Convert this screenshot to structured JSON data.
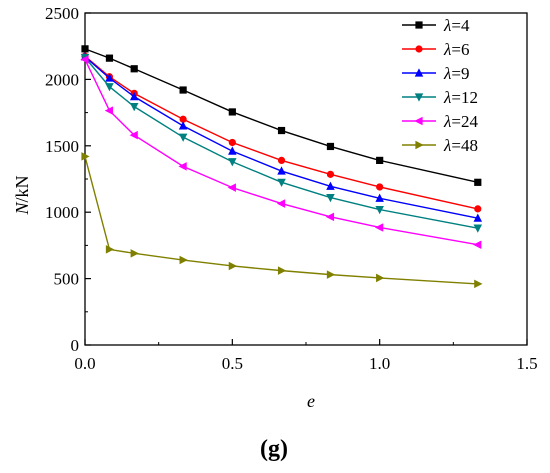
{
  "chart_data": {
    "type": "line",
    "caption": "(g)",
    "xlabel": "e",
    "ylabel_main": "N",
    "ylabel_unit": "/kN",
    "xlim": [
      0,
      1.5
    ],
    "ylim": [
      0,
      2500
    ],
    "x_ticks": [
      "0.0",
      "0.5",
      "1.0",
      "1.5"
    ],
    "y_ticks": [
      "0",
      "500",
      "1000",
      "1500",
      "2000",
      "2500"
    ],
    "grid": false,
    "legend_position": "top-right",
    "x": [
      0,
      0.083,
      0.167,
      0.333,
      0.5,
      0.667,
      0.833,
      1.0,
      1.333
    ],
    "series": [
      {
        "name": "λ=4",
        "legend_symbol": "λ",
        "legend_value": "=4",
        "color": "#000000",
        "marker": "square",
        "values": [
          2230,
          2160,
          2080,
          1920,
          1755,
          1615,
          1495,
          1390,
          1225
        ]
      },
      {
        "name": "λ=6",
        "legend_symbol": "λ",
        "legend_value": "=6",
        "color": "#ff0000",
        "marker": "circle",
        "values": [
          2175,
          2020,
          1895,
          1700,
          1525,
          1390,
          1285,
          1190,
          1025
        ]
      },
      {
        "name": "λ=9",
        "legend_symbol": "λ",
        "legend_value": "=9",
        "color": "#0000ff",
        "marker": "triangle-up",
        "values": [
          2170,
          2010,
          1870,
          1650,
          1460,
          1310,
          1195,
          1105,
          955
        ]
      },
      {
        "name": "λ=12",
        "legend_symbol": "λ",
        "legend_value": "=12",
        "color": "#008080",
        "marker": "triangle-down",
        "values": [
          2165,
          1945,
          1795,
          1565,
          1380,
          1225,
          1110,
          1020,
          880
        ]
      },
      {
        "name": "λ=24",
        "legend_symbol": "λ",
        "legend_value": "=24",
        "color": "#ff00ff",
        "marker": "triangle-left",
        "values": [
          2150,
          1765,
          1580,
          1345,
          1185,
          1065,
          965,
          885,
          755
        ]
      },
      {
        "name": "λ=48",
        "legend_symbol": "λ",
        "legend_value": "=48",
        "color": "#808000",
        "marker": "triangle-right",
        "values": [
          1420,
          720,
          690,
          640,
          595,
          560,
          530,
          505,
          460
        ]
      }
    ]
  }
}
